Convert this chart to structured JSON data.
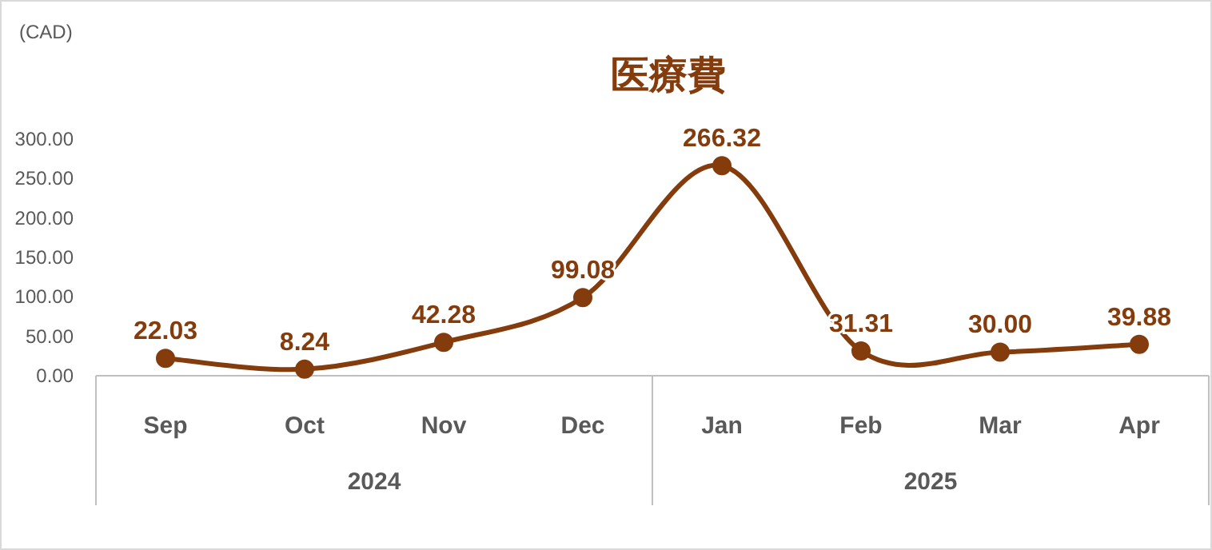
{
  "chart_data": {
    "type": "line",
    "title": "医療費",
    "ylabel": "(CAD)",
    "categories": [
      "Sep",
      "Oct",
      "Nov",
      "Dec",
      "Jan",
      "Feb",
      "Mar",
      "Apr"
    ],
    "annotations": [
      "2024",
      "2025"
    ],
    "series": [
      {
        "color": "#843c0c",
        "values": [
          22.03,
          8.24,
          42.28,
          99.08,
          266.32,
          31.31,
          30.0,
          39.88
        ],
        "value_labels": [
          "22.03",
          "8.24",
          "42.28",
          "99.08",
          "266.32",
          "31.31",
          "30.00",
          "39.88"
        ]
      }
    ],
    "ylim": [
      0,
      300
    ],
    "yticks": [
      {
        "value": 0,
        "label": "0.00"
      },
      {
        "value": 50,
        "label": "50.00"
      },
      {
        "value": 100,
        "label": "100.00"
      },
      {
        "value": 150,
        "label": "150.00"
      },
      {
        "value": 200,
        "label": "200.00"
      },
      {
        "value": 250,
        "label": "250.00"
      },
      {
        "value": 300,
        "label": "300.00"
      }
    ],
    "marker": "circle",
    "line_style": "solid",
    "grid": false
  }
}
